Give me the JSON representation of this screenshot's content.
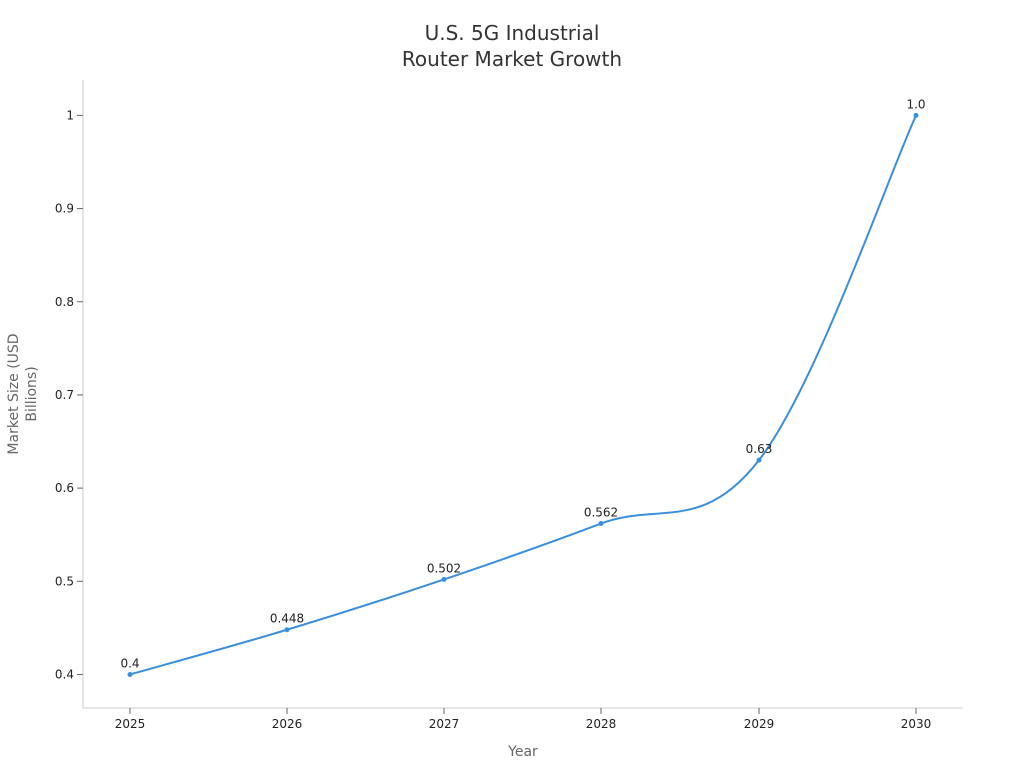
{
  "chart_data": {
    "type": "line",
    "title": [
      "U.S. 5G Industrial",
      "Router Market Growth"
    ],
    "xlabel": "Year",
    "ylabel": [
      "Market Size (USD",
      "Billions)"
    ],
    "categories": [
      "2025",
      "2026",
      "2027",
      "2028",
      "2029",
      "2030"
    ],
    "series": [
      {
        "values": [
          0.4,
          0.448,
          0.502,
          0.562,
          0.63,
          1.0
        ],
        "labels": [
          "0.4",
          "0.448",
          "0.502",
          "0.562",
          "0.63",
          "1.0"
        ],
        "color": "#3a8fdd"
      }
    ],
    "yticks": [
      "0.4",
      "0.5",
      "0.6",
      "0.7",
      "0.8",
      "0.9",
      "1"
    ],
    "ylim": [
      0.364,
      1.038
    ],
    "grid": false,
    "legend": "none"
  }
}
